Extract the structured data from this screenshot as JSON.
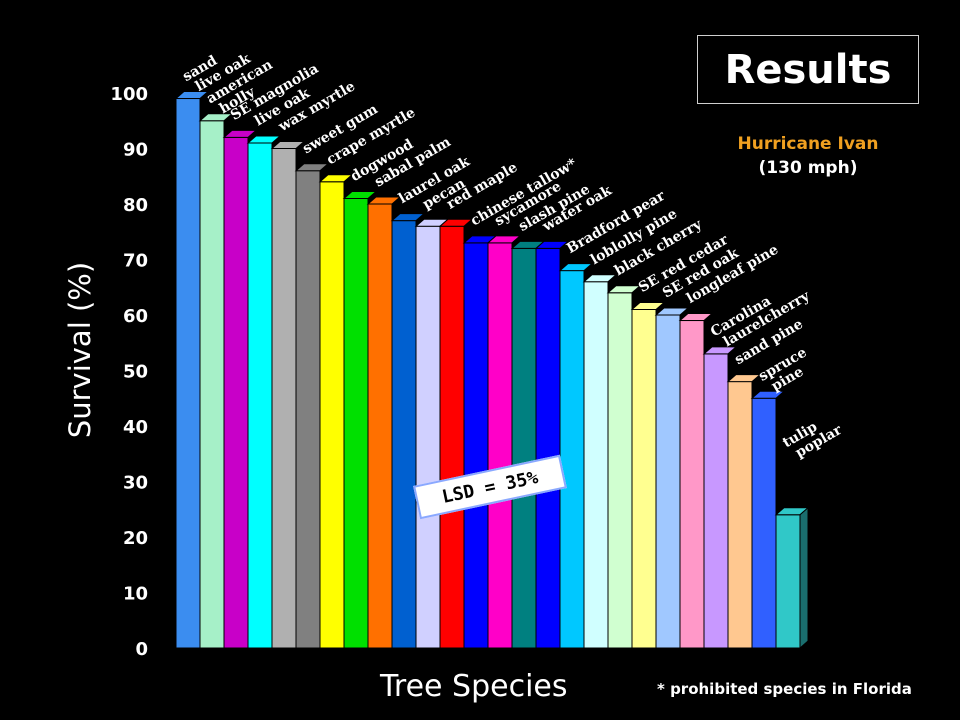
{
  "title": "Results",
  "subtitle_line1": "Hurricane Ivan",
  "subtitle_line2": "(130 mph)",
  "ylabel": "Survival (%)",
  "xlabel": "Tree Species",
  "footnote": "* prohibited species in Florida",
  "lsd_label": "LSD = 35%",
  "chart_data": {
    "type": "bar",
    "title": "Results",
    "subtitle": "Hurricane Ivan (130 mph)",
    "xlabel": "Tree Species",
    "ylabel": "Survival (%)",
    "ylim": [
      0,
      100
    ],
    "yticks": [
      0,
      10,
      20,
      30,
      40,
      50,
      60,
      70,
      80,
      90,
      100
    ],
    "grid": false,
    "categories": [
      [
        "sand",
        "live oak"
      ],
      [
        "american",
        "holly"
      ],
      [
        "SE magnolia"
      ],
      [
        "live oak"
      ],
      [
        "wax myrtle"
      ],
      [
        "sweet gum"
      ],
      [
        "crape myrtle"
      ],
      [
        "dogwood"
      ],
      [
        "sabal palm"
      ],
      [
        "laurel oak"
      ],
      [
        "pecan"
      ],
      [
        "red maple"
      ],
      [
        "chinese tallow*"
      ],
      [
        "sycamore"
      ],
      [
        "slash pine"
      ],
      [
        "water oak"
      ],
      [
        "Bradford pear"
      ],
      [
        "loblolly pine"
      ],
      [
        "black cherry"
      ],
      [
        "SE red cedar"
      ],
      [
        "SE red oak"
      ],
      [
        "longleaf pine"
      ],
      [
        "Carolina",
        "laurelcherry"
      ],
      [
        "sand pine"
      ],
      [
        "spruce",
        "pine"
      ],
      [
        "tulip",
        "poplar"
      ]
    ],
    "values": [
      99,
      95,
      92,
      91,
      90,
      86,
      84,
      81,
      80,
      77,
      76,
      76,
      73,
      73,
      72,
      72,
      68,
      66,
      64,
      61,
      60,
      59,
      53,
      48,
      45,
      24
    ],
    "colors": [
      "#3b8df0",
      "#a6f0c8",
      "#c800c8",
      "#00ffff",
      "#b0b0b0",
      "#808080",
      "#ffff00",
      "#00e000",
      "#ff7000",
      "#0060d0",
      "#d0d0ff",
      "#ff0000",
      "#0000ff",
      "#ff00c8",
      "#008080",
      "#0000ff",
      "#00c8ff",
      "#d0ffff",
      "#d0ffd0",
      "#ffff90",
      "#a0c8ff",
      "#ff98c8",
      "#c898ff",
      "#ffc890",
      "#3060ff",
      "#30c8c8"
    ]
  }
}
